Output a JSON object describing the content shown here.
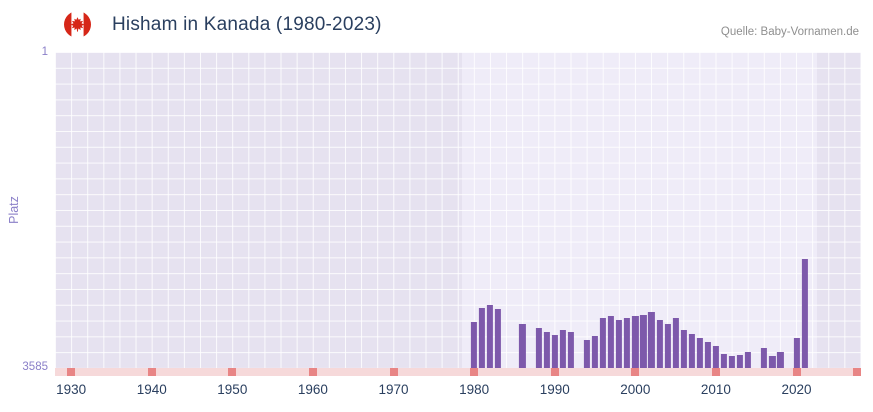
{
  "header": {
    "title": "Hisham in Kanada (1980-2023)",
    "source": "Quelle: Baby-Vornamen.de"
  },
  "chart_data": {
    "type": "bar",
    "title": "Hisham in Kanada (1980-2023)",
    "xlabel": "",
    "ylabel": "Platz",
    "y_axis": {
      "min": 1,
      "max": 3585,
      "inverted": true,
      "top_label": "1",
      "bottom_label": "3585"
    },
    "x_axis": {
      "min": 1928,
      "max": 2028,
      "ticks": [
        1930,
        1940,
        1950,
        1960,
        1970,
        1980,
        1990,
        2000,
        2010,
        2020
      ]
    },
    "highlight_range": [
      1978.5,
      2022.5
    ],
    "grid": true,
    "legend": "none",
    "colors": {
      "bar": "#7d59ab",
      "plot_bg": "#e6e2f0",
      "highlight_bg": "#efecf8",
      "grid": "#ffffff",
      "axis_text": "#2a3f5f",
      "y_axis_text": "#8a7fc8",
      "nodata_band": "#f6d9da",
      "nodata_marker": "#e88585",
      "flag_red": "#d62718",
      "title_text": "#2a3f5f",
      "source_text": "#8f8f8f"
    },
    "points": [
      {
        "year": 1980,
        "rank": 3060
      },
      {
        "year": 1981,
        "rank": 2900
      },
      {
        "year": 1982,
        "rank": 2870
      },
      {
        "year": 1983,
        "rank": 2920
      },
      {
        "year": 1986,
        "rank": 3090
      },
      {
        "year": 1988,
        "rank": 3130
      },
      {
        "year": 1989,
        "rank": 3175
      },
      {
        "year": 1990,
        "rank": 3210
      },
      {
        "year": 1991,
        "rank": 3155
      },
      {
        "year": 1992,
        "rank": 3175
      },
      {
        "year": 1994,
        "rank": 3265
      },
      {
        "year": 1995,
        "rank": 3220
      },
      {
        "year": 1996,
        "rank": 3020
      },
      {
        "year": 1997,
        "rank": 2995
      },
      {
        "year": 1998,
        "rank": 3040
      },
      {
        "year": 1999,
        "rank": 3020
      },
      {
        "year": 2000,
        "rank": 2995
      },
      {
        "year": 2001,
        "rank": 2985
      },
      {
        "year": 2002,
        "rank": 2950
      },
      {
        "year": 2003,
        "rank": 3040
      },
      {
        "year": 2004,
        "rank": 3085
      },
      {
        "year": 2005,
        "rank": 3020
      },
      {
        "year": 2006,
        "rank": 3155
      },
      {
        "year": 2007,
        "rank": 3200
      },
      {
        "year": 2008,
        "rank": 3245
      },
      {
        "year": 2009,
        "rank": 3290
      },
      {
        "year": 2010,
        "rank": 3335
      },
      {
        "year": 2011,
        "rank": 3425
      },
      {
        "year": 2012,
        "rank": 3450
      },
      {
        "year": 2013,
        "rank": 3440
      },
      {
        "year": 2014,
        "rank": 3405
      },
      {
        "year": 2016,
        "rank": 3360
      },
      {
        "year": 2017,
        "rank": 3450
      },
      {
        "year": 2018,
        "rank": 3405
      },
      {
        "year": 2020,
        "rank": 3245
      },
      {
        "year": 2021,
        "rank": 2350
      }
    ],
    "no_data_marker_years": [
      1930,
      1940,
      1950,
      1960,
      1970,
      1980,
      1990,
      2000,
      2010,
      2020
    ],
    "right_end_marker": true
  }
}
